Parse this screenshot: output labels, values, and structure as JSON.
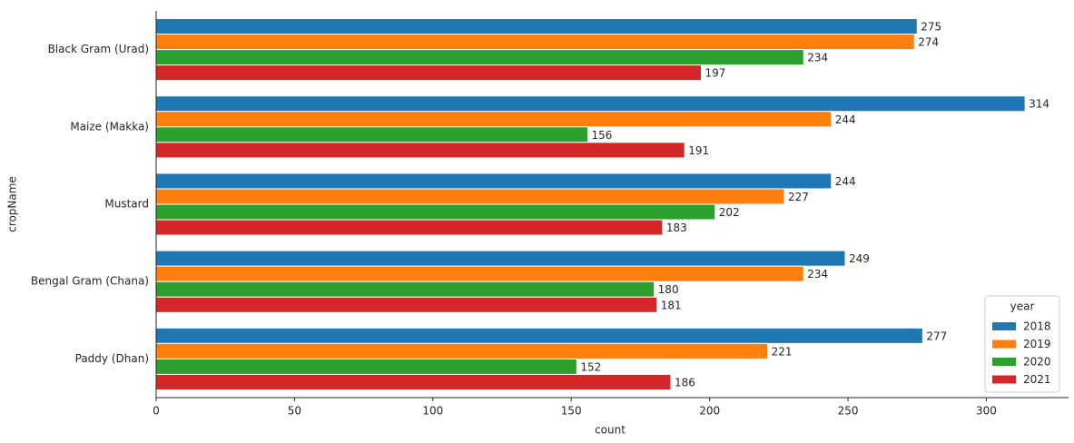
{
  "chart_data": {
    "type": "barh",
    "xlabel": "count",
    "ylabel": "cropName",
    "categories": [
      "Black Gram (Urad)",
      "Maize (Makka)",
      "Mustard",
      "Bengal Gram (Chana)",
      "Paddy (Dhan)"
    ],
    "series": [
      {
        "name": "2018",
        "color": "#1f77b4",
        "values": [
          275,
          314,
          244,
          249,
          277
        ]
      },
      {
        "name": "2019",
        "color": "#ff7f0e",
        "values": [
          274,
          244,
          227,
          234,
          221
        ]
      },
      {
        "name": "2020",
        "color": "#2ca02c",
        "values": [
          234,
          156,
          202,
          180,
          152
        ]
      },
      {
        "name": "2021",
        "color": "#d62728",
        "values": [
          197,
          191,
          183,
          181,
          186
        ]
      }
    ],
    "xlim": [
      0,
      329.7
    ],
    "xticks": [
      0,
      50,
      100,
      150,
      200,
      250,
      300
    ],
    "legend_title": "year",
    "legend": "lower right",
    "grid": false
  }
}
